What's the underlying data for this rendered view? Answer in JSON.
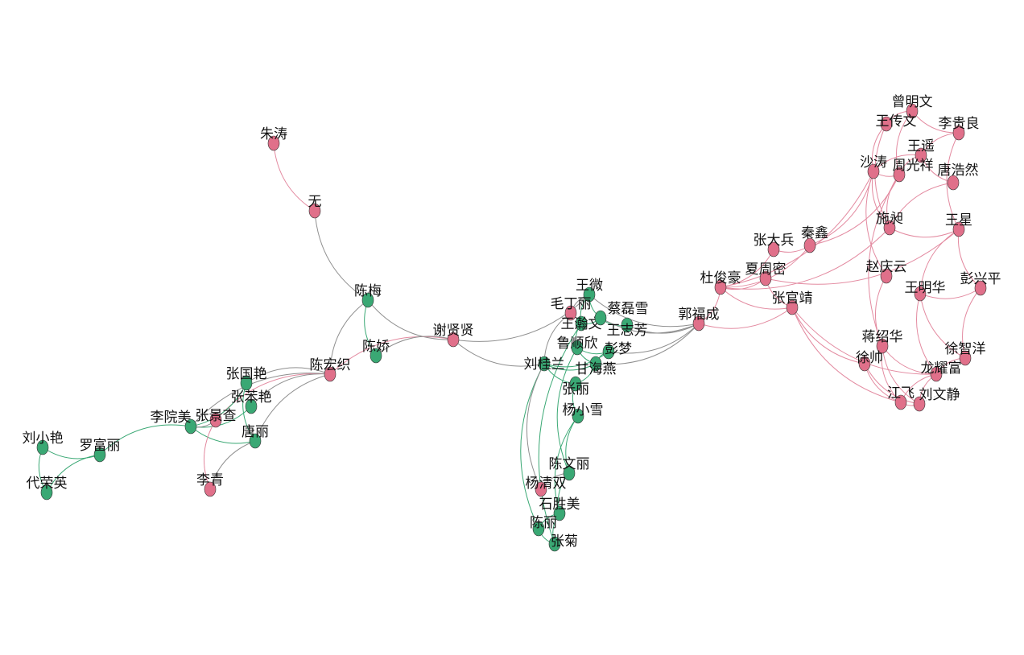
{
  "colors": {
    "group_a": "#e0708a",
    "group_b": "#3aa874",
    "edge_a": "#e38aa0",
    "edge_b": "#3aa874",
    "edge_mixed": "#8f8f8f"
  },
  "nodes": [
    {
      "name": "朱涛",
      "group": "a"
    },
    {
      "name": "无",
      "group": "a"
    },
    {
      "name": "陈梅",
      "group": "b"
    },
    {
      "name": "谢贤贤",
      "group": "a"
    },
    {
      "name": "陈宏织",
      "group": "a"
    },
    {
      "name": "陈娇",
      "group": "b"
    },
    {
      "name": "张国艳",
      "group": "b"
    },
    {
      "name": "张苯艳",
      "group": "b"
    },
    {
      "name": "张景查",
      "group": "a"
    },
    {
      "name": "李院美",
      "group": "b"
    },
    {
      "name": "唐丽",
      "group": "b"
    },
    {
      "name": "李青",
      "group": "a"
    },
    {
      "name": "刘小艳",
      "group": "b"
    },
    {
      "name": "罗富丽",
      "group": "b"
    },
    {
      "name": "代荣英",
      "group": "b"
    },
    {
      "name": "王微",
      "group": "b"
    },
    {
      "name": "毛丁丽",
      "group": "a"
    },
    {
      "name": "王瀚文",
      "group": "b"
    },
    {
      "name": "蔡磊雪",
      "group": "b"
    },
    {
      "name": "王志芳",
      "group": "b"
    },
    {
      "name": "鲁顺欣",
      "group": "b"
    },
    {
      "name": "彭梦",
      "group": "b"
    },
    {
      "name": "甘海燕",
      "group": "b"
    },
    {
      "name": "刘桂兰",
      "group": "b"
    },
    {
      "name": "张丽",
      "group": "b"
    },
    {
      "name": "杨小雪",
      "group": "b"
    },
    {
      "name": "陈文丽",
      "group": "b"
    },
    {
      "name": "杨清双",
      "group": "a"
    },
    {
      "name": "石胜美",
      "group": "b"
    },
    {
      "name": "陈丽",
      "group": "b"
    },
    {
      "name": "张菊",
      "group": "b"
    },
    {
      "name": "郭福成",
      "group": "a"
    },
    {
      "name": "杜俊豪",
      "group": "a"
    },
    {
      "name": "张大兵",
      "group": "a"
    },
    {
      "name": "秦鑫",
      "group": "a"
    },
    {
      "name": "夏周密",
      "group": "a"
    },
    {
      "name": "张官靖",
      "group": "a"
    },
    {
      "name": "曾明文",
      "group": "a"
    },
    {
      "name": "王传文",
      "group": "a"
    },
    {
      "name": "李贵良",
      "group": "a"
    },
    {
      "name": "王遥",
      "group": "a"
    },
    {
      "name": "沙涛",
      "group": "a"
    },
    {
      "name": "周光祥",
      "group": "a"
    },
    {
      "name": "唐浩然",
      "group": "a"
    },
    {
      "name": "施昶",
      "group": "a"
    },
    {
      "name": "王星",
      "group": "a"
    },
    {
      "name": "赵庆云",
      "group": "a"
    },
    {
      "name": "王明华",
      "group": "a"
    },
    {
      "name": "彭兴平",
      "group": "a"
    },
    {
      "name": "蒋绍华",
      "group": "a"
    },
    {
      "name": "徐帅",
      "group": "a"
    },
    {
      "name": "徐智洋",
      "group": "a"
    },
    {
      "name": "龙耀富",
      "group": "a"
    },
    {
      "name": "江飞",
      "group": "a"
    },
    {
      "name": "刘文静",
      "group": "a"
    }
  ],
  "edges": [
    [
      "朱涛",
      "无"
    ],
    [
      "无",
      "陈梅"
    ],
    [
      "陈梅",
      "陈宏织"
    ],
    [
      "陈梅",
      "陈娇"
    ],
    [
      "陈梅",
      "谢贤贤"
    ],
    [
      "谢贤贤",
      "陈宏织"
    ],
    [
      "谢贤贤",
      "陈娇"
    ],
    [
      "谢贤贤",
      "刘桂兰"
    ],
    [
      "谢贤贤",
      "王微"
    ],
    [
      "陈宏织",
      "张国艳"
    ],
    [
      "陈宏织",
      "张苯艳"
    ],
    [
      "陈宏织",
      "张景查"
    ],
    [
      "陈宏织",
      "唐丽"
    ],
    [
      "陈宏织",
      "李院美"
    ],
    [
      "李院美",
      "张国艳"
    ],
    [
      "李院美",
      "张苯艳"
    ],
    [
      "李院美",
      "唐丽"
    ],
    [
      "李院美",
      "张景查"
    ],
    [
      "李院美",
      "罗富丽"
    ],
    [
      "张景查",
      "李青"
    ],
    [
      "唐丽",
      "李青"
    ],
    [
      "张国艳",
      "唐丽"
    ],
    [
      "刘小艳",
      "罗富丽"
    ],
    [
      "刘小艳",
      "代荣英"
    ],
    [
      "罗富丽",
      "代荣英"
    ],
    [
      "王微",
      "毛丁丽"
    ],
    [
      "王微",
      "王瀚文"
    ],
    [
      "王微",
      "蔡磊雪"
    ],
    [
      "王瀚文",
      "蔡磊雪"
    ],
    [
      "蔡磊雪",
      "王志芳"
    ],
    [
      "毛丁丽",
      "刘桂兰"
    ],
    [
      "王瀚文",
      "鲁顺欣"
    ],
    [
      "鲁顺欣",
      "甘海燕"
    ],
    [
      "鲁顺欣",
      "彭梦"
    ],
    [
      "彭梦",
      "甘海燕"
    ],
    [
      "刘桂兰",
      "甘海燕"
    ],
    [
      "刘桂兰",
      "张丽"
    ],
    [
      "刘桂兰",
      "彭梦"
    ],
    [
      "张丽",
      "杨小雪"
    ],
    [
      "张丽",
      "甘海燕"
    ],
    [
      "杨小雪",
      "陈文丽"
    ],
    [
      "杨小雪",
      "石胜美"
    ],
    [
      "刘桂兰",
      "陈丽"
    ],
    [
      "刘桂兰",
      "杨清双"
    ],
    [
      "王瀚文",
      "张菊"
    ],
    [
      "陈文丽",
      "杨清双"
    ],
    [
      "陈文丽",
      "石胜美"
    ],
    [
      "石胜美",
      "陈丽"
    ],
    [
      "石胜美",
      "张菊"
    ],
    [
      "陈丽",
      "张菊"
    ],
    [
      "鲁顺欣",
      "陈文丽"
    ],
    [
      "王志芳",
      "郭福成"
    ],
    [
      "彭梦",
      "郭福成"
    ],
    [
      "甘海燕",
      "郭福成"
    ],
    [
      "蔡磊雪",
      "郭福成"
    ],
    [
      "王微",
      "郭福成"
    ],
    [
      "郭福成",
      "杜俊豪"
    ],
    [
      "郭福成",
      "张官靖"
    ],
    [
      "杜俊豪",
      "张大兵"
    ],
    [
      "杜俊豪",
      "秦鑫"
    ],
    [
      "杜俊豪",
      "夏周密"
    ],
    [
      "杜俊豪",
      "张官靖"
    ],
    [
      "杜俊豪",
      "沙涛"
    ],
    [
      "杜俊豪",
      "施昶"
    ],
    [
      "张大兵",
      "秦鑫"
    ],
    [
      "夏周密",
      "张官靖"
    ],
    [
      "秦鑫",
      "沙涛"
    ],
    [
      "秦鑫",
      "周光祥"
    ],
    [
      "张官靖",
      "徐帅"
    ],
    [
      "张官靖",
      "龙耀富"
    ],
    [
      "张官靖",
      "江飞"
    ],
    [
      "夏周密",
      "王星"
    ],
    [
      "曾明文",
      "王传文"
    ],
    [
      "曾明文",
      "李贵良"
    ],
    [
      "曾明文",
      "周光祥"
    ],
    [
      "王传文",
      "沙涛"
    ],
    [
      "王传文",
      "施昶"
    ],
    [
      "李贵良",
      "王遥"
    ],
    [
      "李贵良",
      "王星"
    ],
    [
      "王遥",
      "沙涛"
    ],
    [
      "王遥",
      "周光祥"
    ],
    [
      "王遥",
      "唐浩然"
    ],
    [
      "沙涛",
      "周光祥"
    ],
    [
      "沙涛",
      "施昶"
    ],
    [
      "周光祥",
      "施昶"
    ],
    [
      "唐浩然",
      "施昶"
    ],
    [
      "施昶",
      "王星"
    ],
    [
      "沙涛",
      "赵庆云"
    ],
    [
      "周光祥",
      "蒋绍华"
    ],
    [
      "王星",
      "王明华"
    ],
    [
      "王星",
      "彭兴平"
    ],
    [
      "王明华",
      "彭兴平"
    ],
    [
      "王明华",
      "龙耀富"
    ],
    [
      "王明华",
      "徐智洋"
    ],
    [
      "彭兴平",
      "徐智洋"
    ],
    [
      "徐智洋",
      "龙耀富"
    ],
    [
      "赵庆云",
      "蒋绍华"
    ],
    [
      "蒋绍华",
      "江飞"
    ],
    [
      "蒋绍华",
      "刘文静"
    ],
    [
      "徐帅",
      "江飞"
    ],
    [
      "徐帅",
      "刘文静"
    ],
    [
      "龙耀富",
      "江飞"
    ],
    [
      "龙耀富",
      "刘文静"
    ],
    [
      "江飞",
      "刘文静"
    ],
    [
      "蒋绍华",
      "龙耀富"
    ]
  ]
}
